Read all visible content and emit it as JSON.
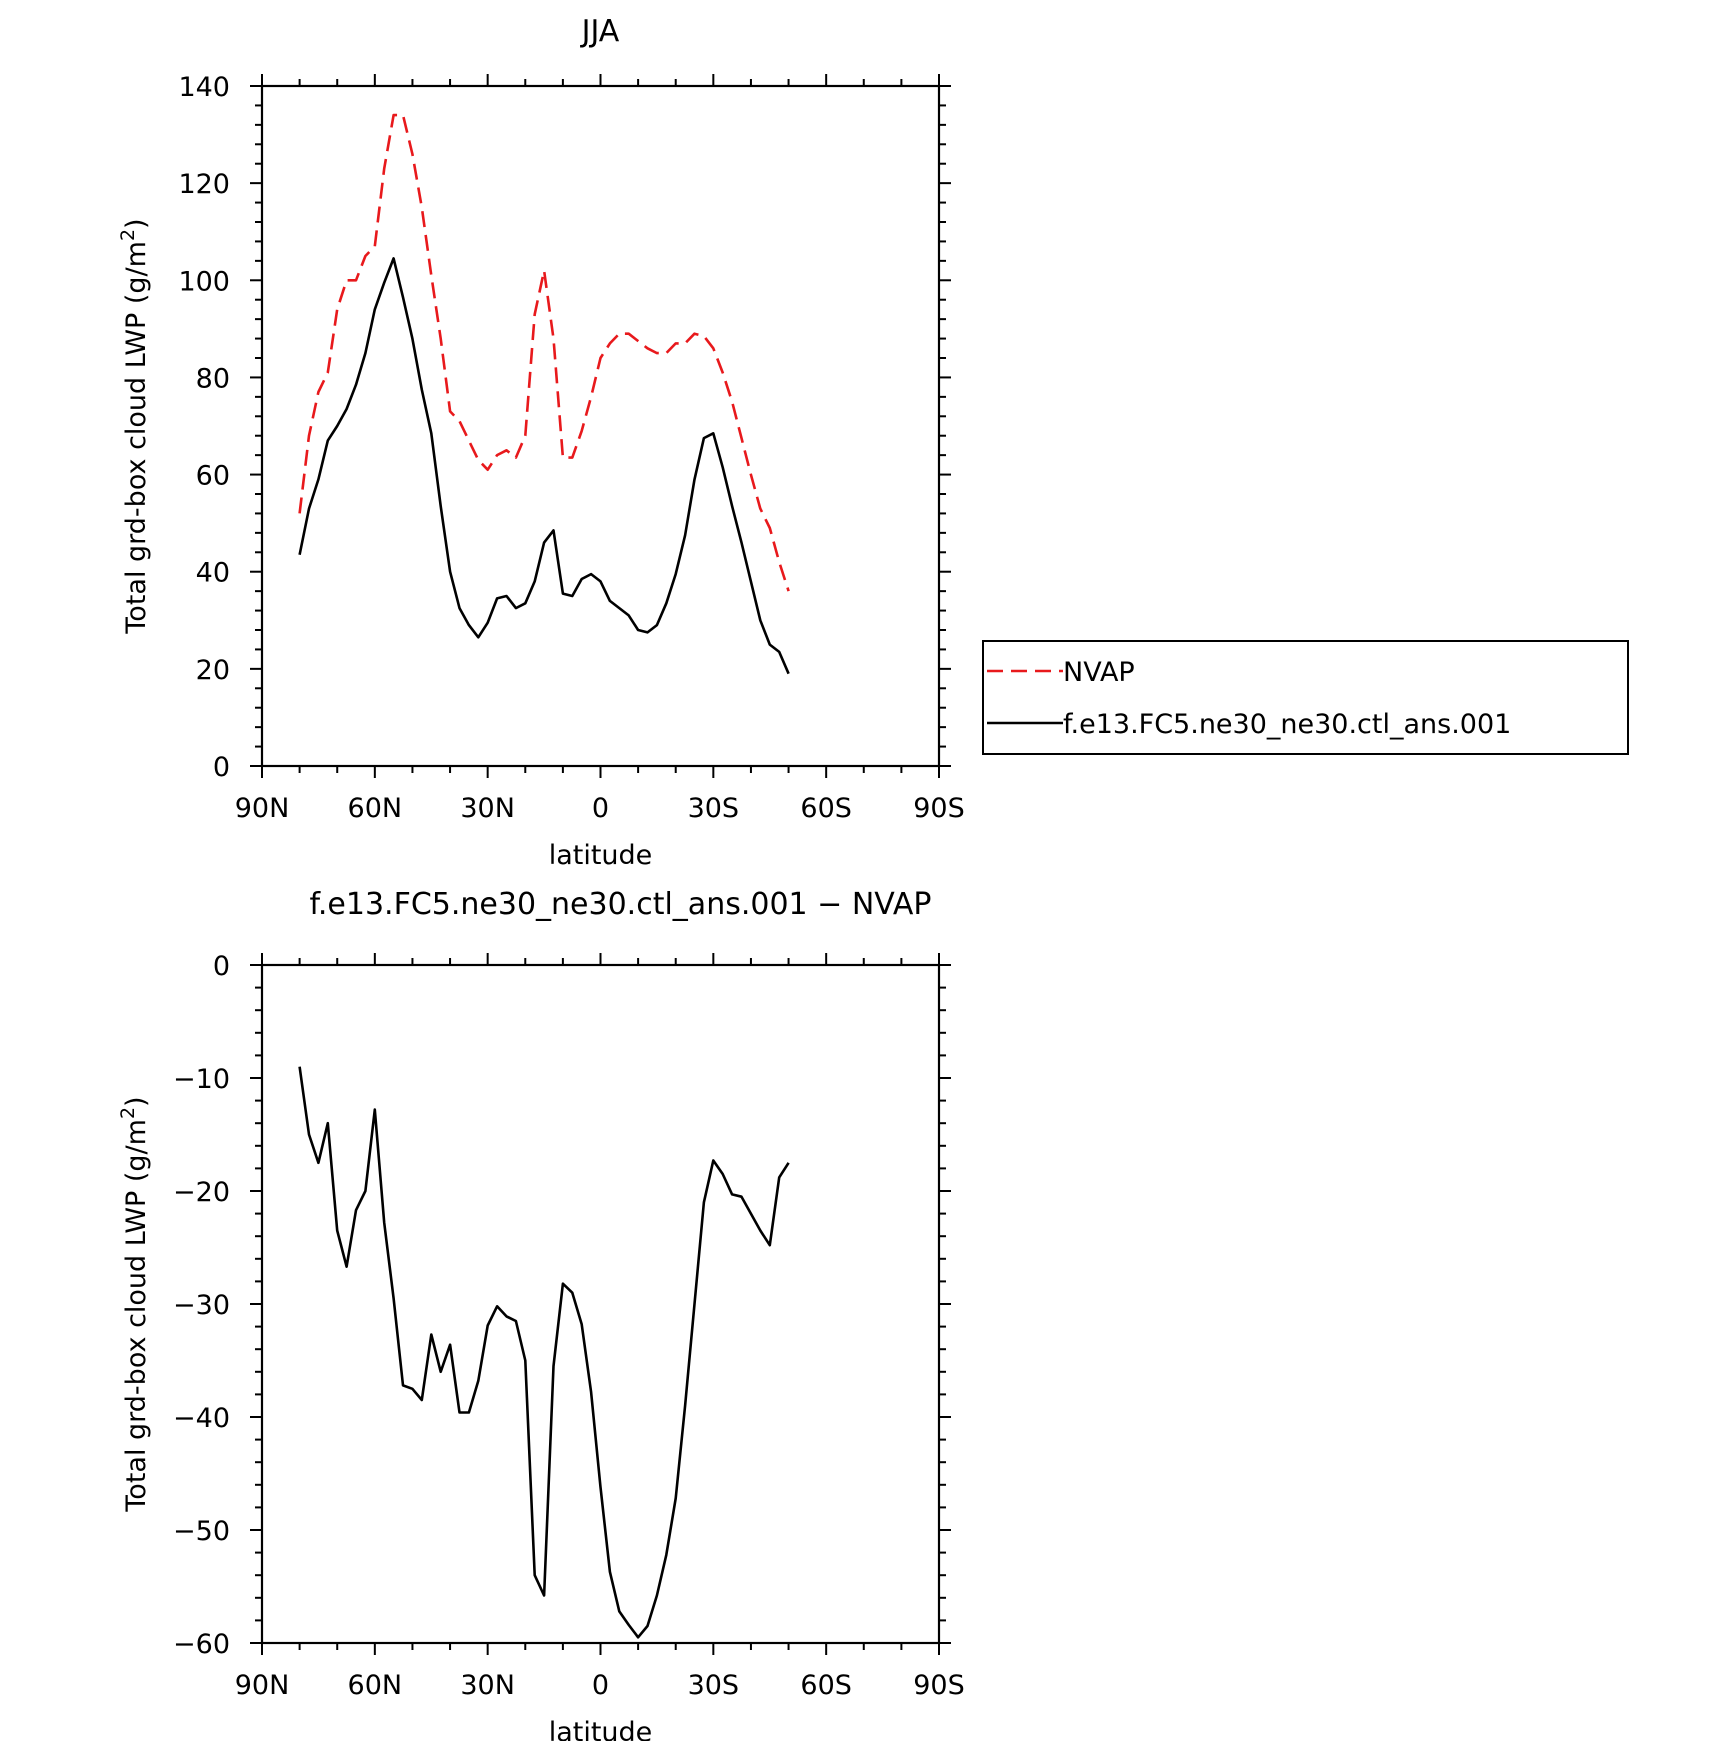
{
  "chart_data": [
    {
      "type": "line",
      "title": "JJA",
      "xlabel": "latitude",
      "ylabel": "Total grd-box cloud LWP (g/m",
      "ylabel_sup": "2",
      "ylabel_end": ")",
      "xlim": [
        -90,
        90
      ],
      "ylim": [
        0,
        140
      ],
      "xticks": [
        {
          "value": -90,
          "label": "90N"
        },
        {
          "value": -60,
          "label": "60N"
        },
        {
          "value": -30,
          "label": "30N"
        },
        {
          "value": 0,
          "label": "0"
        },
        {
          "value": 30,
          "label": "30S"
        },
        {
          "value": 60,
          "label": "60S"
        },
        {
          "value": 90,
          "label": "90S"
        }
      ],
      "yticks": [
        {
          "value": 0,
          "label": "0"
        },
        {
          "value": 20,
          "label": "20"
        },
        {
          "value": 40,
          "label": "40"
        },
        {
          "value": 60,
          "label": "60"
        },
        {
          "value": 80,
          "label": "80"
        },
        {
          "value": 100,
          "label": "100"
        },
        {
          "value": 120,
          "label": "120"
        },
        {
          "value": 140,
          "label": "140"
        }
      ],
      "legend_position": "right",
      "series": [
        {
          "name": "NVAP",
          "color": "#e8191c",
          "dash": "dashed",
          "points": [
            [
              -80,
              52
            ],
            [
              -77.5,
              68
            ],
            [
              -75,
              77
            ],
            [
              -72.5,
              81
            ],
            [
              -70,
              94
            ],
            [
              -67.5,
              100
            ],
            [
              -65,
              100
            ],
            [
              -62.5,
              105
            ],
            [
              -60,
              107
            ],
            [
              -57.5,
              123
            ],
            [
              -55,
              134
            ],
            [
              -52.5,
              134
            ],
            [
              -50,
              126
            ],
            [
              -47.5,
              115
            ],
            [
              -45,
              101
            ],
            [
              -42.5,
              88
            ],
            [
              -40,
              73
            ],
            [
              -37.5,
              71
            ],
            [
              -35,
              67
            ],
            [
              -32.5,
              63
            ],
            [
              -30,
              61
            ],
            [
              -27.5,
              64
            ],
            [
              -25,
              65
            ],
            [
              -22.5,
              63.5
            ],
            [
              -20,
              68
            ],
            [
              -17.5,
              93
            ],
            [
              -15,
              102
            ],
            [
              -12.5,
              88
            ],
            [
              -10,
              63.5
            ],
            [
              -7.5,
              63.5
            ],
            [
              -5,
              69
            ],
            [
              -2.5,
              76
            ],
            [
              0,
              84
            ],
            [
              2.5,
              87
            ],
            [
              5,
              89
            ],
            [
              7.5,
              89
            ],
            [
              10,
              87.5
            ],
            [
              12.5,
              86
            ],
            [
              15,
              85
            ],
            [
              17.5,
              85
            ],
            [
              20,
              87
            ],
            [
              22.5,
              87
            ],
            [
              25,
              89
            ],
            [
              27.5,
              88.5
            ],
            [
              30,
              86
            ],
            [
              32.5,
              81
            ],
            [
              35,
              75
            ],
            [
              37.5,
              67.5
            ],
            [
              40,
              60
            ],
            [
              42.5,
              53
            ],
            [
              45,
              49
            ],
            [
              47.5,
              42
            ],
            [
              50,
              36
            ]
          ]
        },
        {
          "name": "f.e13.FC5.ne30_ne30.ctl_ans.001",
          "color": "#000000",
          "dash": "solid",
          "points": [
            [
              -80,
              43.5
            ],
            [
              -77.5,
              53
            ],
            [
              -75,
              59
            ],
            [
              -72.5,
              67
            ],
            [
              -70,
              70
            ],
            [
              -67.5,
              73.5
            ],
            [
              -65,
              78.5
            ],
            [
              -62.5,
              85
            ],
            [
              -60,
              94
            ],
            [
              -57.5,
              99.5
            ],
            [
              -55,
              104.5
            ],
            [
              -52.5,
              96.5
            ],
            [
              -50,
              88
            ],
            [
              -47.5,
              77.5
            ],
            [
              -45,
              68.5
            ],
            [
              -42.5,
              53.5
            ],
            [
              -40,
              40
            ],
            [
              -37.5,
              32.5
            ],
            [
              -35,
              29
            ],
            [
              -32.5,
              26.5
            ],
            [
              -30,
              29.5
            ],
            [
              -27.5,
              34.5
            ],
            [
              -25,
              35
            ],
            [
              -22.5,
              32.5
            ],
            [
              -20,
              33.5
            ],
            [
              -17.5,
              38
            ],
            [
              -15,
              46
            ],
            [
              -12.5,
              48.5
            ],
            [
              -10,
              35.5
            ],
            [
              -7.5,
              35
            ],
            [
              -5,
              38.5
            ],
            [
              -2.5,
              39.5
            ],
            [
              0,
              38
            ],
            [
              2.5,
              34
            ],
            [
              5,
              32.5
            ],
            [
              7.5,
              31
            ],
            [
              10,
              28
            ],
            [
              12.5,
              27.5
            ],
            [
              15,
              29
            ],
            [
              17.5,
              33.5
            ],
            [
              20,
              39.5
            ],
            [
              22.5,
              47.5
            ],
            [
              25,
              59
            ],
            [
              27.5,
              67.5
            ],
            [
              30,
              68.5
            ],
            [
              32.5,
              61.5
            ],
            [
              35,
              53.5
            ],
            [
              37.5,
              46
            ],
            [
              40,
              38
            ],
            [
              42.5,
              30
            ],
            [
              45,
              25
            ],
            [
              47.5,
              23.5
            ],
            [
              50,
              19
            ]
          ]
        }
      ]
    },
    {
      "type": "line",
      "title": "f.e13.FC5.ne30_ne30.ctl_ans.001 − NVAP",
      "xlabel": "latitude",
      "ylabel": "Total grd-box cloud LWP (g/m",
      "ylabel_sup": "2",
      "ylabel_end": ")",
      "xlim": [
        -90,
        90
      ],
      "ylim": [
        -60,
        0
      ],
      "xticks": [
        {
          "value": -90,
          "label": "90N"
        },
        {
          "value": -60,
          "label": "60N"
        },
        {
          "value": -30,
          "label": "30N"
        },
        {
          "value": 0,
          "label": "0"
        },
        {
          "value": 30,
          "label": "30S"
        },
        {
          "value": 60,
          "label": "60S"
        },
        {
          "value": 90,
          "label": "90S"
        }
      ],
      "yticks": [
        {
          "value": 0,
          "label": "0"
        },
        {
          "value": -10,
          "label": "−10"
        },
        {
          "value": -20,
          "label": "−20"
        },
        {
          "value": -30,
          "label": "−30"
        },
        {
          "value": -40,
          "label": "−40"
        },
        {
          "value": -50,
          "label": "−50"
        },
        {
          "value": -60,
          "label": "−60"
        }
      ],
      "series": [
        {
          "color": "#000000",
          "dash": "solid",
          "points": [
            [
              -80,
              -9
            ],
            [
              -77.5,
              -15
            ],
            [
              -75,
              -17.5
            ],
            [
              -72.5,
              -14
            ],
            [
              -70,
              -23.5
            ],
            [
              -67.5,
              -26.7
            ],
            [
              -65,
              -21.7
            ],
            [
              -62.5,
              -20
            ],
            [
              -60,
              -12.8
            ],
            [
              -57.5,
              -22.8
            ],
            [
              -55,
              -29.5
            ],
            [
              -52.5,
              -37.2
            ],
            [
              -50,
              -37.5
            ],
            [
              -47.5,
              -38.5
            ],
            [
              -45,
              -32.7
            ],
            [
              -42.5,
              -36
            ],
            [
              -40,
              -33.6
            ],
            [
              -37.5,
              -39.6
            ],
            [
              -35,
              -39.6
            ],
            [
              -32.5,
              -36.8
            ],
            [
              -30,
              -31.9
            ],
            [
              -27.5,
              -30.2
            ],
            [
              -25,
              -31.1
            ],
            [
              -22.5,
              -31.5
            ],
            [
              -20,
              -35
            ],
            [
              -17.5,
              -54
            ],
            [
              -15,
              -55.8
            ],
            [
              -12.5,
              -35.5
            ],
            [
              -10,
              -28.2
            ],
            [
              -7.5,
              -29
            ],
            [
              -5,
              -31.8
            ],
            [
              -2.5,
              -37.8
            ],
            [
              0,
              -46.2
            ],
            [
              2.5,
              -53.7
            ],
            [
              5,
              -57.2
            ],
            [
              7.5,
              -58.4
            ],
            [
              10,
              -59.5
            ],
            [
              12.5,
              -58.5
            ],
            [
              15,
              -55.8
            ],
            [
              17.5,
              -52.2
            ],
            [
              20,
              -47.2
            ],
            [
              22.5,
              -39
            ],
            [
              25,
              -30
            ],
            [
              27.5,
              -21
            ],
            [
              30,
              -17.3
            ],
            [
              32.5,
              -18.5
            ],
            [
              35,
              -20.3
            ],
            [
              37.5,
              -20.5
            ],
            [
              40,
              -22
            ],
            [
              42.5,
              -23.5
            ],
            [
              45,
              -24.8
            ],
            [
              47.5,
              -18.8
            ],
            [
              50,
              -17.5
            ]
          ]
        }
      ]
    }
  ]
}
